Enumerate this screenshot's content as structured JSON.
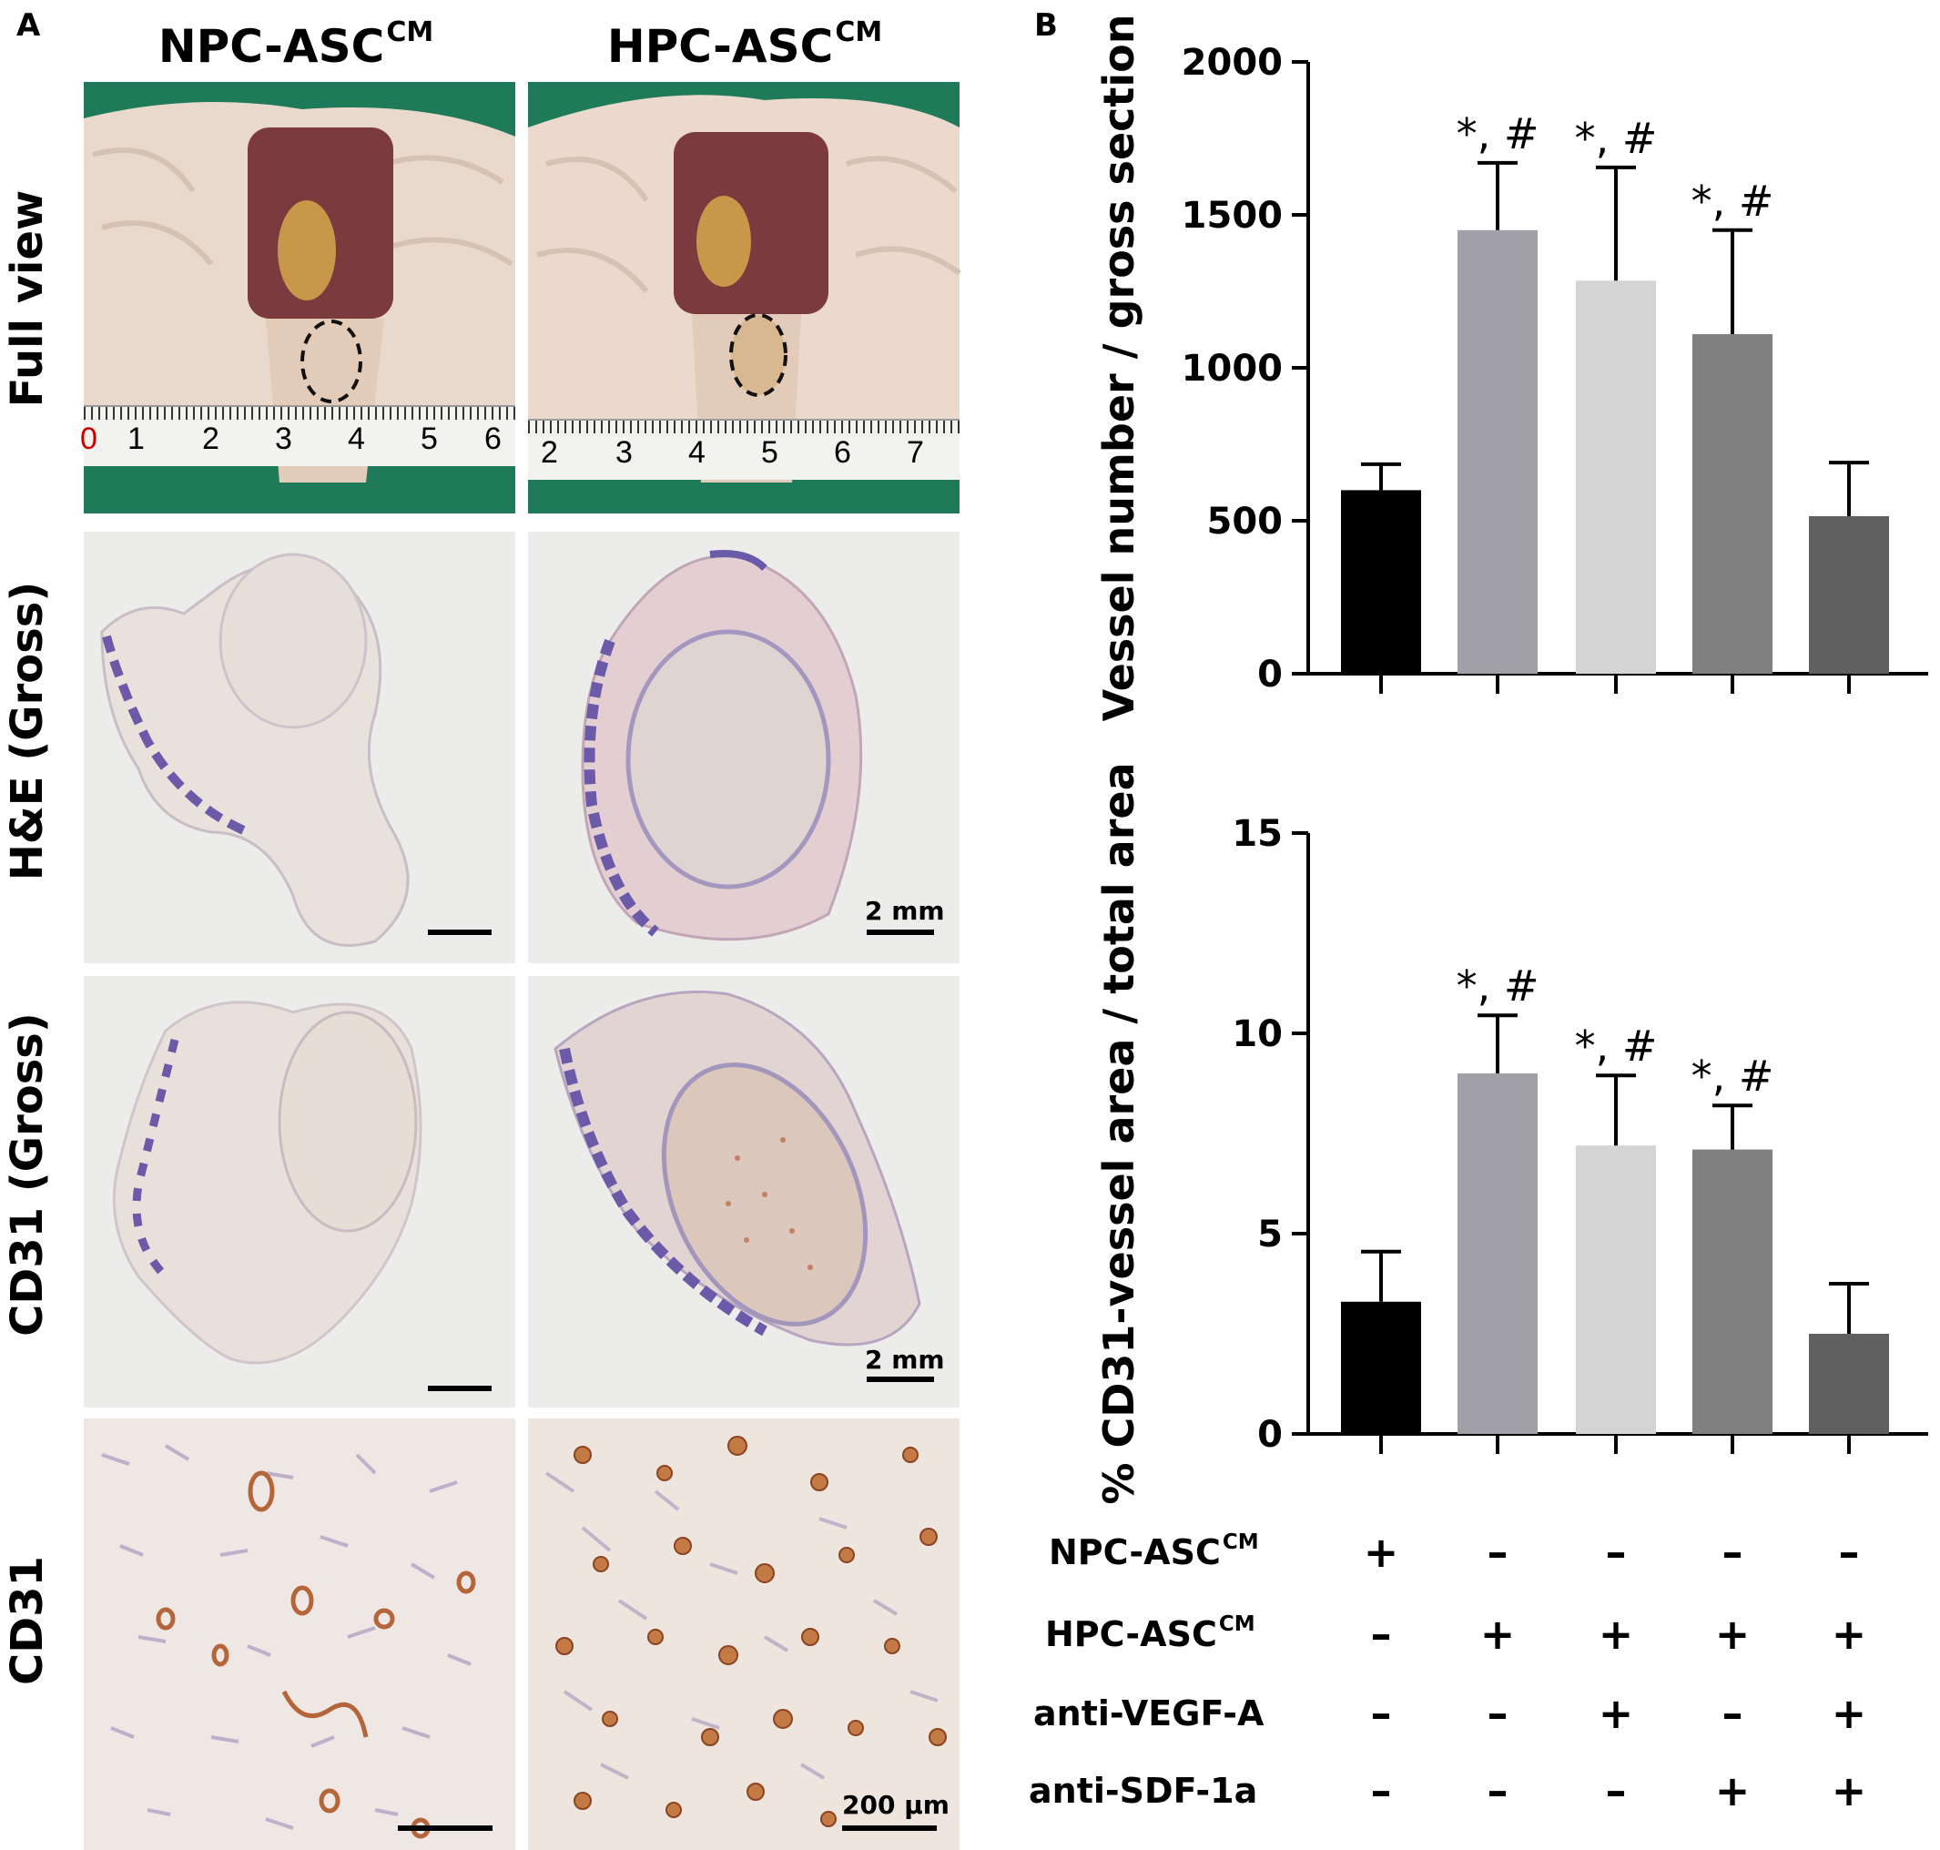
{
  "panel_a": {
    "letter": "A",
    "col_headers": [
      "NPC-ASC",
      "HPC-ASC"
    ],
    "col_header_superscript": "CM",
    "row_labels": [
      "Full view",
      "H&E (Gross)",
      "CD31 (Gross)",
      "CD31"
    ],
    "ruler_numbers_left": [
      "0",
      "1",
      "2",
      "3",
      "4",
      "5",
      "6"
    ],
    "ruler_numbers_right": [
      "2",
      "3",
      "4",
      "5",
      "6",
      "7"
    ],
    "scale_labels": {
      "he": "2 mm",
      "cd31_gross": "2 mm",
      "cd31": "200 µm"
    },
    "colors": {
      "drape": "#1f7a5a",
      "skin": "#e8d6c8",
      "stain_purple": "#6a5aa8",
      "stain_brown": "#b5653a"
    }
  },
  "panel_b": {
    "letter": "B",
    "treatment_rows": [
      {
        "label": "NPC-ASC",
        "sup": "CM",
        "signs": [
          "+",
          "–",
          "–",
          "–",
          "–"
        ]
      },
      {
        "label": "HPC-ASC",
        "sup": "CM",
        "signs": [
          "–",
          "+",
          "+",
          "+",
          "+"
        ]
      },
      {
        "label": "anti-VEGF-A",
        "sup": "",
        "signs": [
          "–",
          "–",
          "+",
          "–",
          "+"
        ]
      },
      {
        "label": "anti-SDF-1a",
        "sup": "",
        "signs": [
          "–",
          "–",
          "–",
          "+",
          "+"
        ]
      }
    ]
  },
  "chart_data": [
    {
      "type": "bar",
      "ylabel": "Vessel number / gross section",
      "ylim": [
        0,
        2000
      ],
      "yticks": [
        "0",
        "500",
        "1000",
        "1500",
        "2000"
      ],
      "values": [
        600,
        1450,
        1285,
        1110,
        515
      ],
      "errors": [
        85,
        220,
        370,
        340,
        175
      ],
      "annotations": [
        "",
        "*, #",
        "*, #",
        "*, #",
        ""
      ],
      "bar_colors": [
        "#000000",
        "#a0a0a6",
        "#d4d4d4",
        "#808080",
        "#606060"
      ]
    },
    {
      "type": "bar",
      "ylabel": "% CD31-vessel area / total area",
      "ylim": [
        0,
        15
      ],
      "yticks": [
        "0",
        "5",
        "10",
        "15"
      ],
      "values": [
        3.3,
        9.0,
        7.2,
        7.1,
        2.5
      ],
      "errors": [
        1.25,
        1.45,
        1.75,
        1.1,
        1.25
      ],
      "annotations": [
        "",
        "*, #",
        "*, #",
        "*, #",
        ""
      ],
      "bar_colors": [
        "#000000",
        "#a0a0a6",
        "#d4d4d4",
        "#808080",
        "#606060"
      ]
    }
  ]
}
